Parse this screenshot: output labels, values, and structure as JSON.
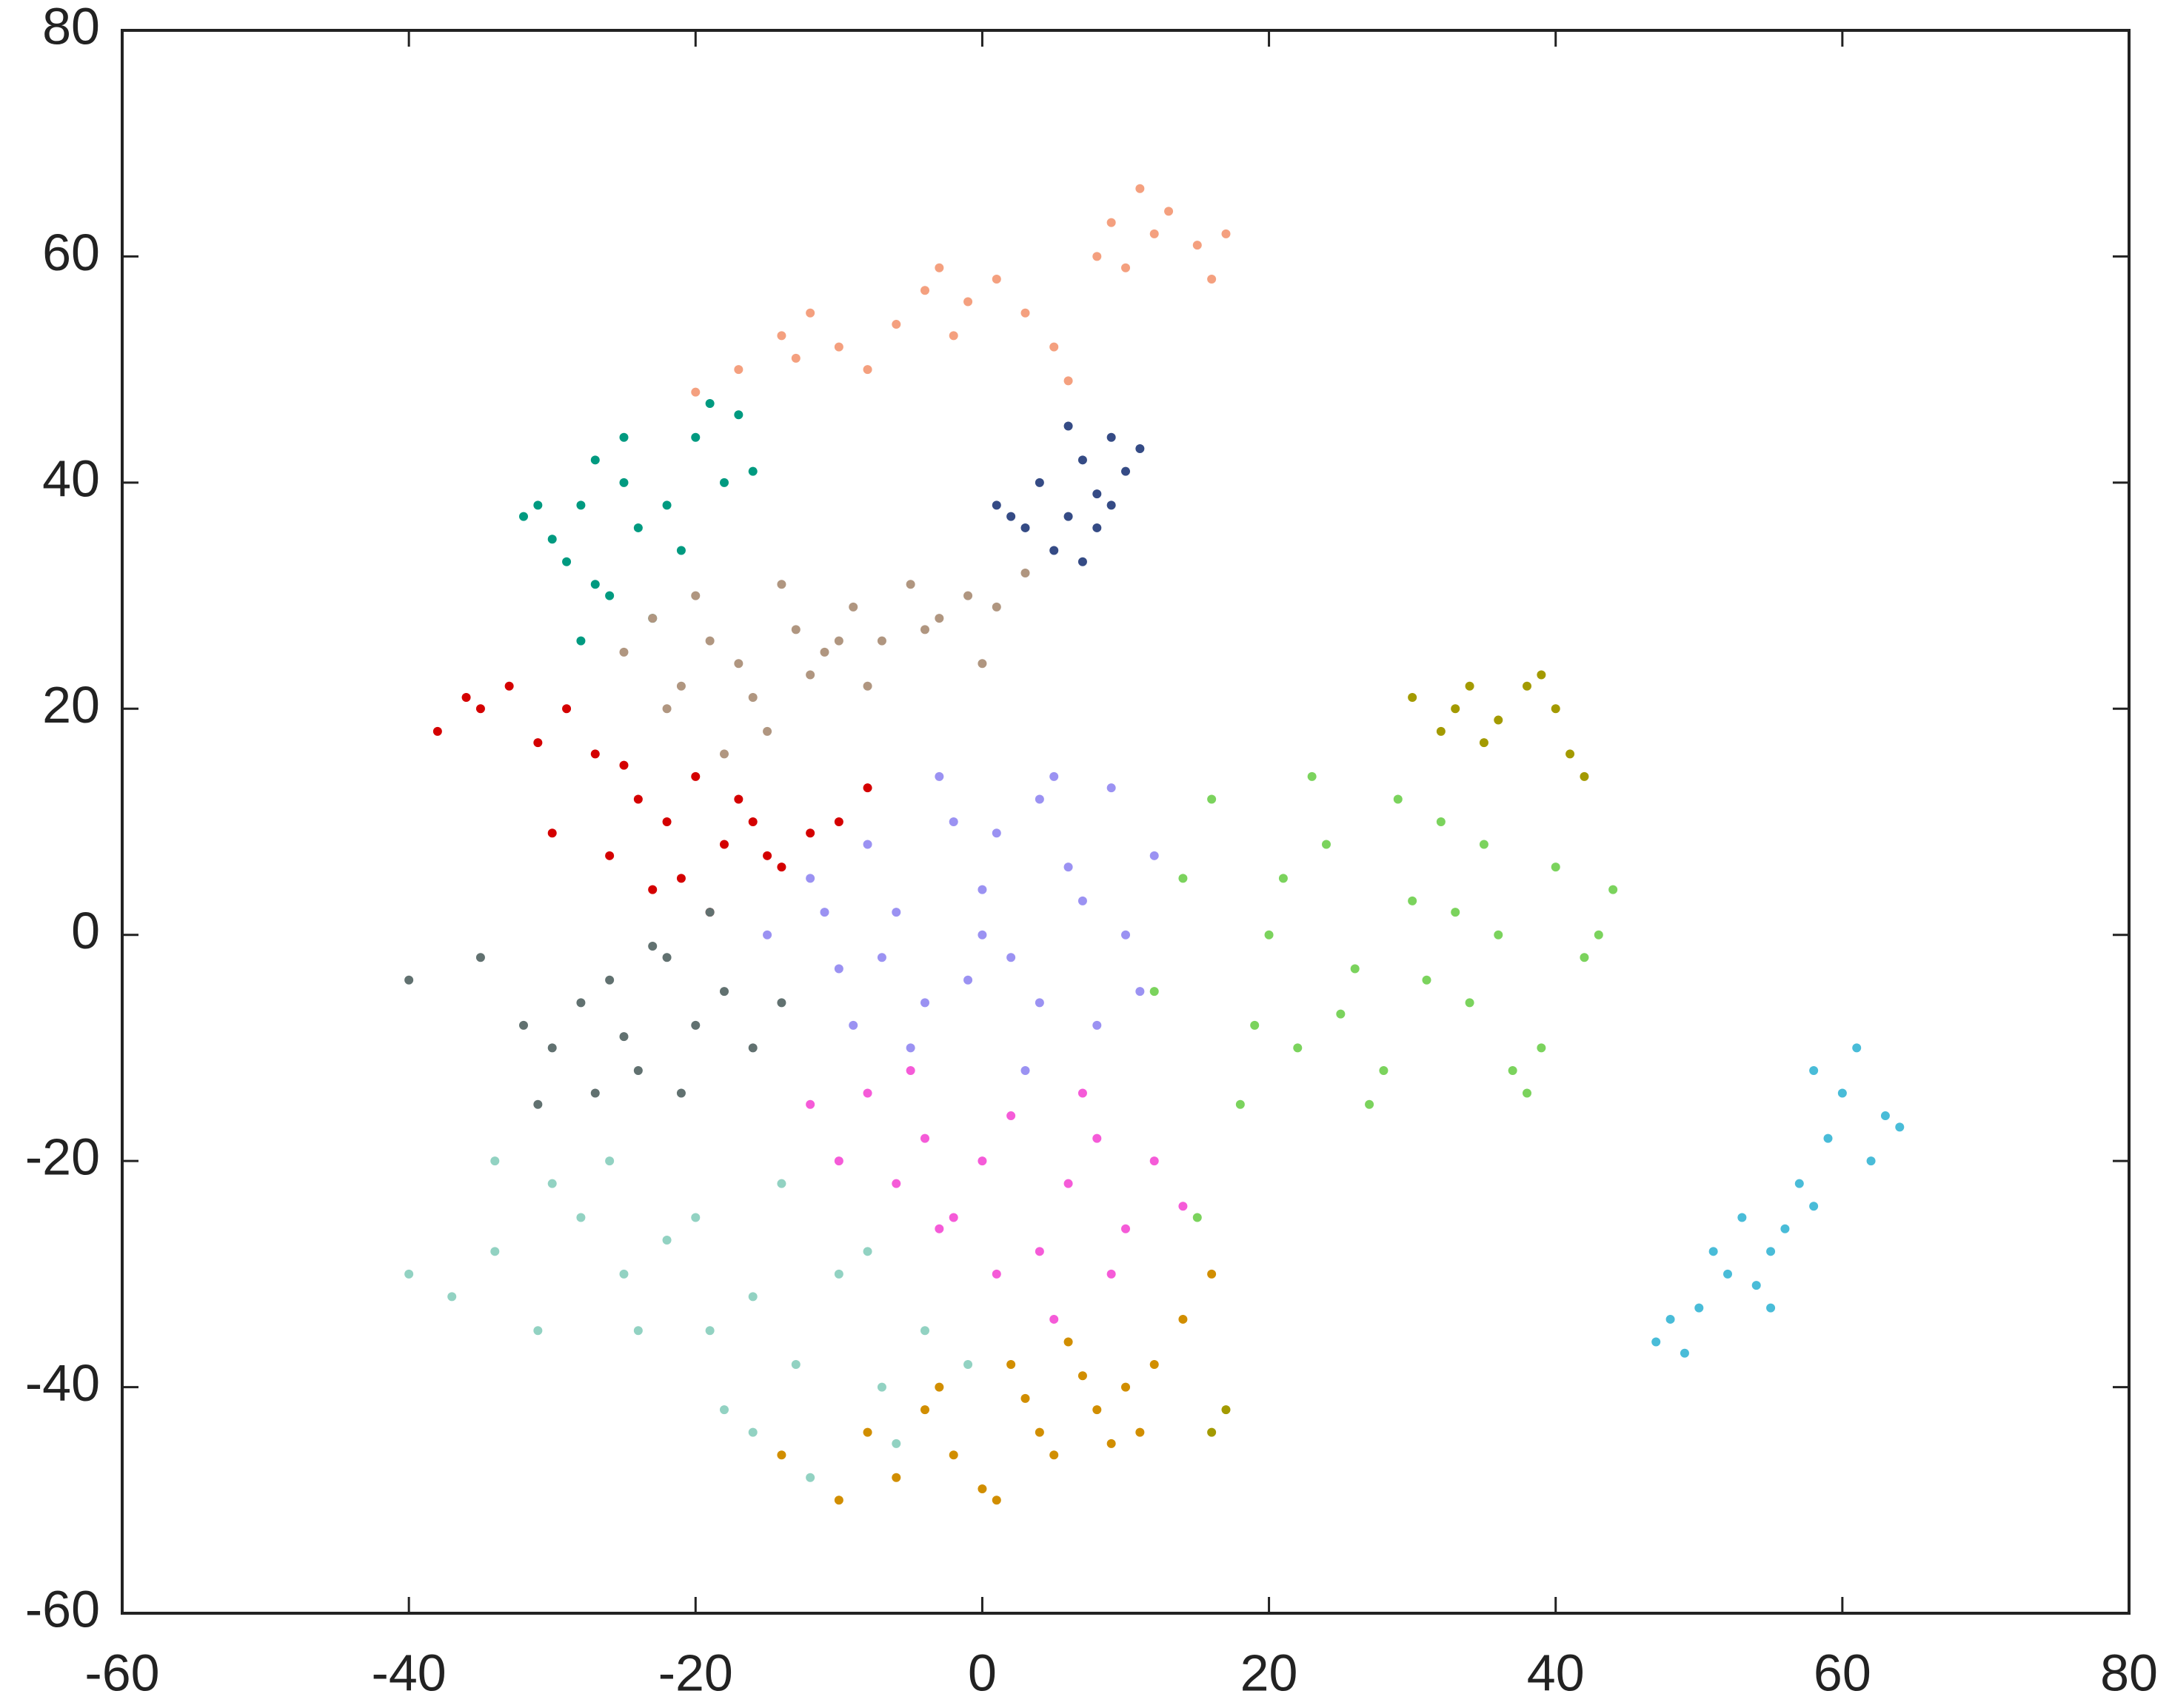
{
  "chart_data": {
    "type": "scatter",
    "xlim": [
      -60,
      80
    ],
    "ylim": [
      -60,
      80
    ],
    "xticks": [
      -60,
      -40,
      -20,
      0,
      20,
      40,
      60,
      80
    ],
    "yticks": [
      -60,
      -40,
      -20,
      0,
      20,
      40,
      60,
      80
    ],
    "series": [
      {
        "color": "#f4a07f",
        "x": [
          -20,
          -17,
          -14,
          -12,
          -10,
          -8,
          -6,
          -4,
          -3,
          -1,
          1,
          3,
          5,
          6,
          8,
          9,
          11,
          12,
          13,
          15,
          16,
          17,
          10,
          -2,
          -13
        ],
        "y": [
          48,
          50,
          53,
          55,
          52,
          50,
          54,
          57,
          59,
          56,
          58,
          55,
          52,
          49,
          60,
          63,
          66,
          62,
          64,
          61,
          58,
          62,
          59,
          53,
          51
        ]
      },
      {
        "color": "#009a80",
        "x": [
          -32,
          -30,
          -28,
          -27,
          -29,
          -25,
          -24,
          -22,
          -26,
          -20,
          -19,
          -18,
          -21,
          -23,
          -31,
          -28,
          -17,
          -16,
          -25,
          -27
        ],
        "y": [
          37,
          35,
          38,
          42,
          33,
          40,
          36,
          38,
          30,
          44,
          47,
          40,
          34,
          28,
          38,
          26,
          46,
          41,
          44,
          31
        ]
      },
      {
        "color": "#354b85",
        "x": [
          1,
          3,
          4,
          6,
          7,
          8,
          9,
          10,
          11,
          5,
          8,
          6,
          9,
          2,
          7
        ],
        "y": [
          38,
          36,
          40,
          37,
          42,
          39,
          44,
          41,
          43,
          34,
          36,
          45,
          38,
          37,
          33
        ]
      },
      {
        "color": "#b09680",
        "x": [
          -25,
          -23,
          -21,
          -19,
          -17,
          -15,
          -13,
          -11,
          -9,
          -7,
          -5,
          -3,
          -1,
          1,
          3,
          -20,
          -16,
          -12,
          -8,
          -4,
          -18,
          -14,
          -22,
          -10,
          0
        ],
        "y": [
          25,
          28,
          22,
          26,
          24,
          18,
          27,
          25,
          29,
          26,
          31,
          28,
          30,
          29,
          32,
          30,
          21,
          23,
          22,
          27,
          16,
          31,
          20,
          26,
          24
        ]
      },
      {
        "color": "#d40000",
        "x": [
          -38,
          -35,
          -33,
          -31,
          -29,
          -27,
          -25,
          -24,
          -22,
          -20,
          -18,
          -16,
          -14,
          -12,
          -10,
          -8,
          -30,
          -21,
          -19,
          -23,
          -17,
          -36,
          -26,
          -15
        ],
        "y": [
          18,
          20,
          22,
          17,
          20,
          16,
          15,
          12,
          10,
          14,
          8,
          10,
          6,
          9,
          10,
          13,
          9,
          5,
          2,
          4,
          12,
          21,
          7,
          7
        ]
      },
      {
        "color": "#9b92f2",
        "x": [
          -15,
          -12,
          -10,
          -8,
          -6,
          -4,
          -2,
          0,
          2,
          4,
          6,
          8,
          10,
          12,
          -5,
          -1,
          3,
          7,
          11,
          -9,
          -3,
          1,
          5,
          9,
          -7,
          0,
          4,
          -11
        ],
        "y": [
          0,
          5,
          -3,
          8,
          2,
          -6,
          10,
          4,
          -2,
          12,
          6,
          -8,
          0,
          7,
          -10,
          -4,
          -12,
          3,
          -5,
          -8,
          14,
          9,
          14,
          13,
          -2,
          0,
          -6,
          2
        ]
      },
      {
        "color": "#7bd35d",
        "x": [
          12,
          14,
          16,
          18,
          20,
          22,
          24,
          26,
          28,
          30,
          32,
          34,
          36,
          38,
          40,
          42,
          44,
          15,
          19,
          23,
          27,
          31,
          35,
          39,
          43,
          21,
          25,
          29,
          33,
          37
        ],
        "y": [
          -5,
          5,
          12,
          -15,
          0,
          -10,
          8,
          -3,
          -12,
          3,
          10,
          -6,
          0,
          -14,
          6,
          -2,
          4,
          -25,
          -8,
          14,
          -15,
          -4,
          8,
          -10,
          0,
          5,
          -7,
          12,
          2,
          -12
        ]
      },
      {
        "color": "#a39a00",
        "x": [
          30,
          32,
          34,
          36,
          38,
          40,
          41,
          35,
          33,
          39,
          17,
          16,
          42
        ],
        "y": [
          21,
          18,
          22,
          19,
          22,
          20,
          16,
          17,
          20,
          23,
          -42,
          -44,
          14
        ]
      },
      {
        "color": "#617170",
        "x": [
          -35,
          -32,
          -30,
          -28,
          -26,
          -24,
          -22,
          -20,
          -18,
          -16,
          -14,
          -27,
          -25,
          -21,
          -31,
          -23,
          -19,
          -40
        ],
        "y": [
          -2,
          -8,
          -10,
          -6,
          -4,
          -12,
          -2,
          -8,
          -5,
          -10,
          -6,
          -14,
          -9,
          -14,
          -15,
          -1,
          2,
          -4
        ]
      },
      {
        "color": "#92d2c2",
        "x": [
          -40,
          -37,
          -34,
          -31,
          -28,
          -25,
          -22,
          -19,
          -16,
          -13,
          -10,
          -7,
          -4,
          -1,
          -30,
          -26,
          -20,
          -14,
          -8,
          -16,
          -12,
          -24,
          -34,
          -18,
          -6
        ],
        "y": [
          -30,
          -32,
          -28,
          -35,
          -25,
          -30,
          -27,
          -35,
          -32,
          -38,
          -30,
          -40,
          -35,
          -38,
          -22,
          -20,
          -25,
          -22,
          -28,
          -44,
          -48,
          -35,
          -20,
          -42,
          -45
        ]
      },
      {
        "color": "#f55bd8",
        "x": [
          -12,
          -10,
          -8,
          -6,
          -4,
          -2,
          0,
          2,
          4,
          6,
          8,
          10,
          12,
          14,
          -5,
          1,
          5,
          9,
          -3,
          7
        ],
        "y": [
          -15,
          -20,
          -14,
          -22,
          -18,
          -25,
          -20,
          -16,
          -28,
          -22,
          -18,
          -26,
          -20,
          -24,
          -12,
          -30,
          -34,
          -30,
          -26,
          -14
        ]
      },
      {
        "color": "#d18e00",
        "x": [
          -14,
          -10,
          -8,
          -6,
          -4,
          -2,
          0,
          2,
          4,
          6,
          8,
          10,
          12,
          14,
          1,
          5,
          9,
          -3,
          3,
          16,
          7,
          11
        ],
        "y": [
          -46,
          -50,
          -44,
          -48,
          -42,
          -46,
          -49,
          -38,
          -44,
          -36,
          -42,
          -40,
          -38,
          -34,
          -50,
          -46,
          -45,
          -40,
          -41,
          -30,
          -39,
          -44
        ]
      },
      {
        "color": "#49bcd8",
        "x": [
          47,
          48,
          49,
          50,
          52,
          53,
          54,
          55,
          56,
          57,
          58,
          59,
          60,
          61,
          62,
          63,
          64,
          51,
          55,
          58
        ],
        "y": [
          -36,
          -34,
          -37,
          -33,
          -30,
          -25,
          -31,
          -28,
          -26,
          -22,
          -24,
          -18,
          -14,
          -10,
          -20,
          -16,
          -17,
          -28,
          -33,
          -12
        ]
      }
    ]
  }
}
